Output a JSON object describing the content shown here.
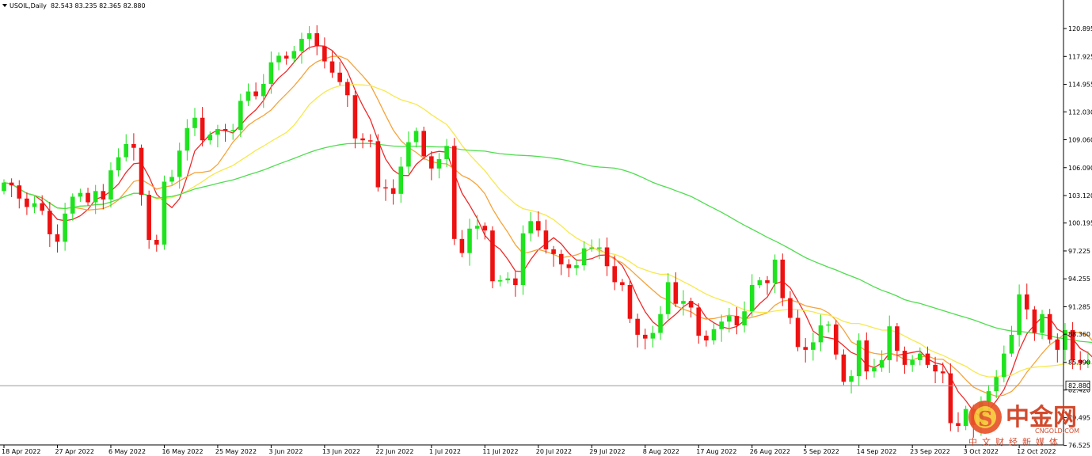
{
  "header": {
    "symbol_label": "USOIL,Daily",
    "ohlc": "82.543 83.235 82.365 82.880"
  },
  "current_price": {
    "value": 82.88,
    "label": "82.880"
  },
  "colors": {
    "up": "#1ee31e",
    "down": "#ee1111",
    "ma_fast": "#ee2a2a",
    "ma_mid": "#f5a33a",
    "ma_slow": "#f7e84c",
    "ma_long": "#4fdd4f",
    "price_line": "#9a9a9a"
  },
  "watermark": {
    "brand_cn": "中金网",
    "domain": "CNGOLD.COM",
    "tagline": "中文财经新媒体"
  },
  "chart_data": {
    "type": "candlestick",
    "ylim": [
      77.0,
      122.5
    ],
    "y_ticks": [
      {
        "value": 120.895,
        "label": "120.895"
      },
      {
        "value": 117.925,
        "label": "117.925"
      },
      {
        "value": 114.955,
        "label": "114.955"
      },
      {
        "value": 112.03,
        "label": "112.030"
      },
      {
        "value": 109.06,
        "label": "109.060"
      },
      {
        "value": 106.09,
        "label": "106.090"
      },
      {
        "value": 103.12,
        "label": "103.120"
      },
      {
        "value": 100.195,
        "label": "100.195"
      },
      {
        "value": 97.225,
        "label": "97.225"
      },
      {
        "value": 94.255,
        "label": "94.255"
      },
      {
        "value": 91.285,
        "label": "91.285"
      },
      {
        "value": 88.36,
        "label": "88.360"
      },
      {
        "value": 85.39,
        "label": "85.390"
      },
      {
        "value": 82.42,
        "label": "82.420"
      },
      {
        "value": 79.495,
        "label": "79.495"
      },
      {
        "value": 76.525,
        "label": "76.525"
      }
    ],
    "x_labels": [
      {
        "bar": 0,
        "label": "18 Apr 2022"
      },
      {
        "bar": 7,
        "label": "27 Apr 2022"
      },
      {
        "bar": 14,
        "label": "6 May 2022"
      },
      {
        "bar": 21,
        "label": "16 May 2022"
      },
      {
        "bar": 28,
        "label": "25 May 2022"
      },
      {
        "bar": 35,
        "label": "3 Jun 2022"
      },
      {
        "bar": 42,
        "label": "13 Jun 2022"
      },
      {
        "bar": 49,
        "label": "22 Jun 2022"
      },
      {
        "bar": 56,
        "label": "1 Jul 2022"
      },
      {
        "bar": 63,
        "label": "11 Jul 2022"
      },
      {
        "bar": 70,
        "label": "20 Jul 2022"
      },
      {
        "bar": 77,
        "label": "29 Jul 2022"
      },
      {
        "bar": 84,
        "label": "8 Aug 2022"
      },
      {
        "bar": 91,
        "label": "17 Aug 2022"
      },
      {
        "bar": 98,
        "label": "26 Aug 2022"
      },
      {
        "bar": 105,
        "label": "5 Sep 2022"
      },
      {
        "bar": 112,
        "label": "14 Sep 2022"
      },
      {
        "bar": 119,
        "label": "23 Sep 2022"
      },
      {
        "bar": 126,
        "label": "3 Oct 2022"
      },
      {
        "bar": 133,
        "label": "12 Oct 2022"
      }
    ],
    "closes": [
      104.5,
      104.2,
      102.8,
      101.9,
      102.3,
      101.5,
      99.0,
      98.2,
      101.2,
      103.0,
      103.4,
      102.4,
      103.6,
      102.7,
      105.8,
      107.2,
      108.6,
      108.2,
      103.2,
      98.4,
      97.9,
      104.6,
      105.1,
      107.9,
      110.3,
      111.4,
      109.0,
      109.6,
      110.2,
      110.0,
      110.1,
      113.2,
      114.2,
      113.7,
      115.0,
      117.3,
      118.0,
      117.7,
      118.5,
      119.8,
      120.4,
      119.0,
      117.4,
      116.2,
      115.2,
      113.8,
      109.2,
      109.0,
      108.9,
      104.0,
      103.9,
      103.3,
      106.2,
      108.8,
      110.0,
      107.3,
      106.0,
      107.0,
      108.4,
      98.5,
      97.0,
      99.6,
      99.9,
      99.4,
      94.0,
      94.1,
      94.3,
      93.6,
      99.1,
      100.4,
      99.4,
      97.4,
      96.9,
      95.8,
      95.4,
      95.7,
      97.5,
      97.6,
      97.6,
      95.6,
      93.9,
      93.6,
      90.0,
      88.3,
      87.9,
      88.5,
      90.5,
      93.9,
      91.6,
      91.9,
      91.2,
      88.2,
      87.7,
      88.9,
      89.7,
      90.3,
      89.3,
      90.8,
      93.6,
      94.1,
      93.8,
      96.3,
      92.2,
      90.1,
      87.0,
      86.7,
      87.5,
      89.3,
      89.4,
      86.2,
      83.3,
      83.9,
      87.7,
      84.4,
      84.8,
      85.6,
      89.2,
      86.6,
      85.1,
      85.6,
      86.3,
      85.1,
      84.4,
      84.2,
      78.9,
      78.6,
      80.4,
      78.7,
      81.2,
      82.3,
      83.8,
      86.3,
      88.3,
      92.6,
      91.0,
      88.5,
      90.5,
      87.8,
      86.7,
      88.8,
      85.6,
      85.3,
      85.5,
      82.9
    ],
    "ma_series": [
      {
        "period": 5,
        "color_key": "ma_fast"
      },
      {
        "period": 10,
        "color_key": "ma_mid"
      },
      {
        "period": 20,
        "color_key": "ma_slow"
      },
      {
        "period": 60,
        "color_key": "ma_long"
      }
    ]
  }
}
